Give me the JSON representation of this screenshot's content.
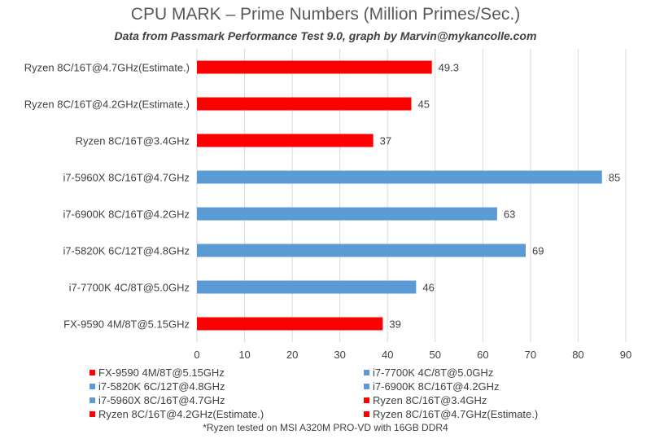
{
  "colors": {
    "ryzen": "#ff0000",
    "intel": "#5b9bd5",
    "amd_fx": "#ff0000",
    "grid": "#d9d9d9"
  },
  "chart_data": {
    "type": "bar",
    "orientation": "horizontal",
    "title": "CPU MARK – Prime Numbers (Million Primes/Sec.)",
    "subtitle": "Data from Passmark Performance Test 9.0, graph by Marvin@mykancolle.com",
    "xlim": [
      0,
      90
    ],
    "xticks": [
      0,
      10,
      20,
      30,
      40,
      50,
      60,
      70,
      80,
      90
    ],
    "grid": true,
    "categories": [
      "Ryzen 8C/16T@4.7GHz(Estimate.)",
      "Ryzen 8C/16T@4.2GHz(Estimate.)",
      "Ryzen 8C/16T@3.4GHz",
      "i7-5960X 8C/16T@4.7GHz",
      "i7-6900K 8C/16T@4.2GHz",
      "i7-5820K 6C/12T@4.8GHz",
      "i7-7700K 4C/8T@5.0GHz",
      "FX-9590 4M/8T@5.15GHz"
    ],
    "values": [
      49.3,
      45,
      37,
      85,
      63,
      69,
      46,
      39
    ],
    "value_labels": [
      "49.3",
      "45",
      "37",
      "85",
      "63",
      "69",
      "46",
      "39"
    ],
    "bar_colors": [
      "#ff0000",
      "#ff0000",
      "#ff0000",
      "#5b9bd5",
      "#5b9bd5",
      "#5b9bd5",
      "#5b9bd5",
      "#ff0000"
    ],
    "legend": [
      {
        "name": "FX-9590 4M/8T@5.15GHz",
        "color": "#ff0000"
      },
      {
        "name": "i7-7700K 4C/8T@5.0GHz",
        "color": "#5b9bd5"
      },
      {
        "name": "i7-5820K 6C/12T@4.8GHz",
        "color": "#5b9bd5"
      },
      {
        "name": "i7-6900K 8C/16T@4.2GHz",
        "color": "#5b9bd5"
      },
      {
        "name": "i7-5960X 8C/16T@4.7GHz",
        "color": "#5b9bd5"
      },
      {
        "name": "Ryzen 8C/16T@3.4GHz",
        "color": "#ff0000"
      },
      {
        "name": "Ryzen 8C/16T@4.2GHz(Estimate.)",
        "color": "#ff0000"
      },
      {
        "name": "Ryzen 8C/16T@4.7GHz(Estimate.)",
        "color": "#ff0000"
      }
    ],
    "legend_placement": "bottom",
    "footnote": "*Ryzen tested on MSI A320M PRO-VD with 16GB DDR4"
  }
}
